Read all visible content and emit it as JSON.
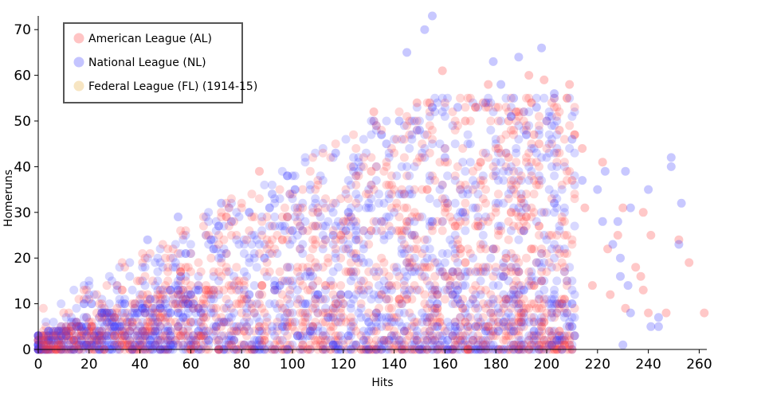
{
  "chart_data": {
    "type": "scatter",
    "xlabel": "Hits",
    "ylabel": "Homeruns",
    "xlim": [
      0,
      263
    ],
    "ylim": [
      0,
      73
    ],
    "x_ticks": [
      0,
      20,
      40,
      60,
      80,
      100,
      120,
      140,
      160,
      180,
      200,
      220,
      240,
      260
    ],
    "y_ticks": [
      0,
      10,
      20,
      30,
      40,
      50,
      60,
      70
    ],
    "grid": false,
    "legend_position": "top-left",
    "series": [
      {
        "name": "American League (AL)",
        "color": "#ff3b3b",
        "highlight_points": [
          [
            159,
            61
          ],
          [
            193,
            60
          ],
          [
            154,
            54
          ],
          [
            177,
            58
          ],
          [
            199,
            59
          ],
          [
            209,
            58
          ],
          [
            185,
            50
          ],
          [
            195,
            47
          ],
          [
            132,
            52
          ],
          [
            149,
            54
          ],
          [
            87,
            39
          ],
          [
            181,
            44
          ],
          [
            205,
            48
          ],
          [
            211,
            47
          ],
          [
            214,
            44
          ],
          [
            222,
            41
          ],
          [
            210,
            37
          ],
          [
            230,
            31
          ],
          [
            238,
            30
          ],
          [
            241,
            25
          ],
          [
            237,
            16
          ],
          [
            235,
            18
          ],
          [
            238,
            13
          ],
          [
            256,
            19
          ],
          [
            252,
            24
          ],
          [
            240,
            8
          ],
          [
            262,
            8
          ],
          [
            247,
            8
          ],
          [
            231,
            9
          ],
          [
            225,
            12
          ],
          [
            228,
            25
          ],
          [
            224,
            22
          ],
          [
            218,
            14
          ],
          [
            215,
            31
          ],
          [
            185,
            42
          ],
          [
            197,
            45
          ],
          [
            131,
            39
          ],
          [
            120,
            28
          ],
          [
            168,
            50
          ],
          [
            172,
            53
          ],
          [
            175,
            54
          ]
        ]
      },
      {
        "name": "National League (NL)",
        "color": "#3b3bff",
        "highlight_points": [
          [
            155,
            73
          ],
          [
            152,
            70
          ],
          [
            145,
            65
          ],
          [
            198,
            66
          ],
          [
            189,
            64
          ],
          [
            179,
            63
          ],
          [
            182,
            58
          ],
          [
            187,
            55
          ],
          [
            203,
            56
          ],
          [
            196,
            53
          ],
          [
            200,
            50
          ],
          [
            249,
            40
          ],
          [
            249,
            42
          ],
          [
            253,
            32
          ],
          [
            252,
            23
          ],
          [
            240,
            35
          ],
          [
            233,
            31
          ],
          [
            223,
            39
          ],
          [
            231,
            39
          ],
          [
            220,
            35
          ],
          [
            228,
            28
          ],
          [
            226,
            23
          ],
          [
            229,
            20
          ],
          [
            232,
            14
          ],
          [
            241,
            5
          ],
          [
            244,
            7
          ],
          [
            229,
            16
          ],
          [
            222,
            28
          ],
          [
            214,
            37
          ],
          [
            210,
            46
          ],
          [
            186,
            51
          ],
          [
            176,
            54
          ],
          [
            165,
            53
          ],
          [
            150,
            48
          ],
          [
            142,
            50
          ],
          [
            43,
            24
          ],
          [
            55,
            29
          ],
          [
            72,
            32
          ],
          [
            92,
            34
          ],
          [
            117,
            43
          ],
          [
            124,
            40
          ],
          [
            160,
            42
          ],
          [
            137,
            45
          ],
          [
            98,
            38
          ],
          [
            233,
            8
          ],
          [
            244,
            5
          ],
          [
            204,
            2
          ],
          [
            230,
            1
          ]
        ]
      },
      {
        "name": "Federal League (FL) (1914-15)",
        "color": "#f5deb3",
        "highlight_points": []
      }
    ]
  }
}
